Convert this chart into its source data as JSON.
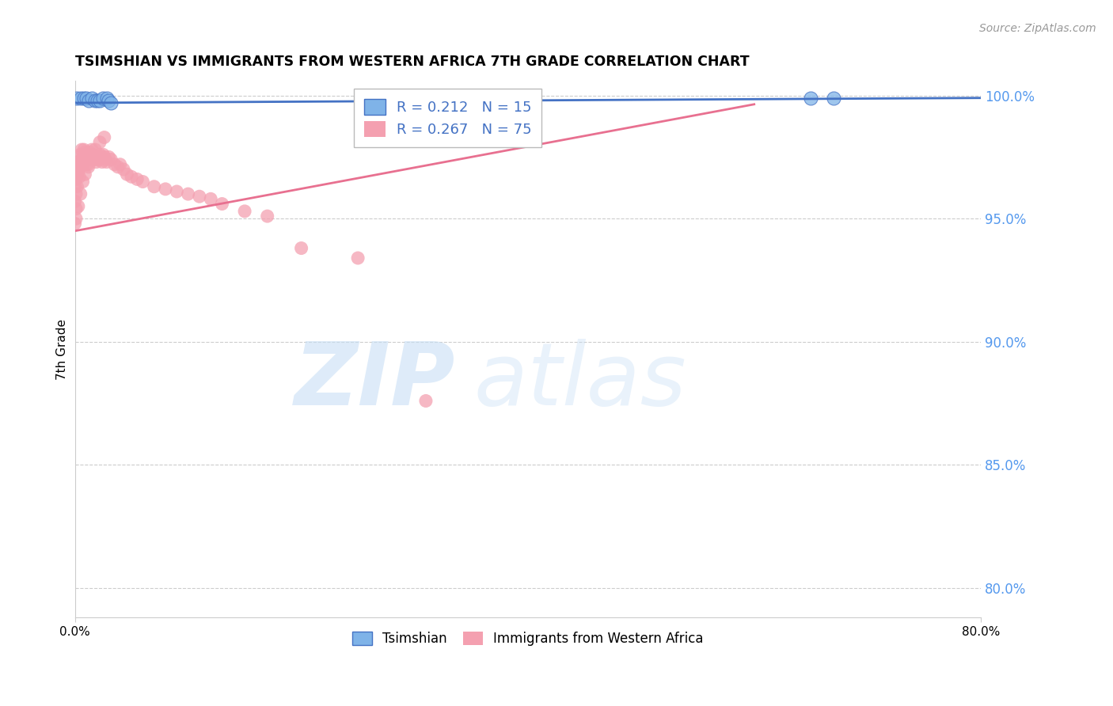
{
  "title": "TSIMSHIAN VS IMMIGRANTS FROM WESTERN AFRICA 7TH GRADE CORRELATION CHART",
  "source": "Source: ZipAtlas.com",
  "ylabel": "7th Grade",
  "xlim": [
    0.0,
    0.8
  ],
  "ylim": [
    0.788,
    1.006
  ],
  "yticks": [
    0.8,
    0.85,
    0.9,
    0.95,
    1.0
  ],
  "ytick_labels": [
    "80.0%",
    "85.0%",
    "90.0%",
    "95.0%",
    "100.0%"
  ],
  "xtick_positions": [
    0.0,
    0.8
  ],
  "xtick_labels": [
    "0.0%",
    "80.0%"
  ],
  "blue_r": 0.212,
  "blue_n": 15,
  "pink_r": 0.267,
  "pink_n": 75,
  "blue_color": "#7FB3E8",
  "pink_color": "#F4A0B0",
  "blue_line_color": "#4472C4",
  "pink_line_color": "#E87090",
  "grid_color": "#CCCCCC",
  "blue_scatter_x": [
    0.002,
    0.005,
    0.008,
    0.01,
    0.012,
    0.015,
    0.018,
    0.02,
    0.022,
    0.025,
    0.028,
    0.03,
    0.032,
    0.65,
    0.67
  ],
  "blue_scatter_y": [
    0.999,
    0.999,
    0.999,
    0.999,
    0.998,
    0.999,
    0.998,
    0.998,
    0.998,
    0.999,
    0.999,
    0.998,
    0.997,
    0.999,
    0.999
  ],
  "pink_scatter_x": [
    0.0,
    0.0,
    0.001,
    0.001,
    0.001,
    0.002,
    0.002,
    0.002,
    0.003,
    0.003,
    0.004,
    0.004,
    0.005,
    0.005,
    0.006,
    0.006,
    0.007,
    0.007,
    0.008,
    0.008,
    0.009,
    0.01,
    0.01,
    0.011,
    0.012,
    0.012,
    0.013,
    0.014,
    0.015,
    0.016,
    0.017,
    0.018,
    0.019,
    0.02,
    0.021,
    0.022,
    0.023,
    0.024,
    0.025,
    0.026,
    0.027,
    0.028,
    0.03,
    0.032,
    0.035,
    0.038,
    0.04,
    0.043,
    0.046,
    0.05,
    0.055,
    0.06,
    0.07,
    0.08,
    0.09,
    0.1,
    0.11,
    0.12,
    0.13,
    0.15,
    0.17,
    0.0,
    0.001,
    0.003,
    0.005,
    0.007,
    0.009,
    0.012,
    0.015,
    0.018,
    0.022,
    0.026,
    0.2,
    0.25,
    0.31
  ],
  "pink_scatter_y": [
    0.963,
    0.957,
    0.966,
    0.96,
    0.954,
    0.971,
    0.968,
    0.963,
    0.973,
    0.969,
    0.972,
    0.967,
    0.976,
    0.971,
    0.978,
    0.974,
    0.976,
    0.972,
    0.978,
    0.974,
    0.977,
    0.976,
    0.972,
    0.975,
    0.975,
    0.971,
    0.977,
    0.974,
    0.978,
    0.976,
    0.975,
    0.974,
    0.973,
    0.975,
    0.974,
    0.976,
    0.975,
    0.973,
    0.976,
    0.975,
    0.974,
    0.973,
    0.975,
    0.974,
    0.972,
    0.971,
    0.972,
    0.97,
    0.968,
    0.967,
    0.966,
    0.965,
    0.963,
    0.962,
    0.961,
    0.96,
    0.959,
    0.958,
    0.956,
    0.953,
    0.951,
    0.948,
    0.95,
    0.955,
    0.96,
    0.965,
    0.968,
    0.972,
    0.975,
    0.978,
    0.981,
    0.983,
    0.938,
    0.934,
    0.876
  ],
  "background_color": "#FFFFFF"
}
